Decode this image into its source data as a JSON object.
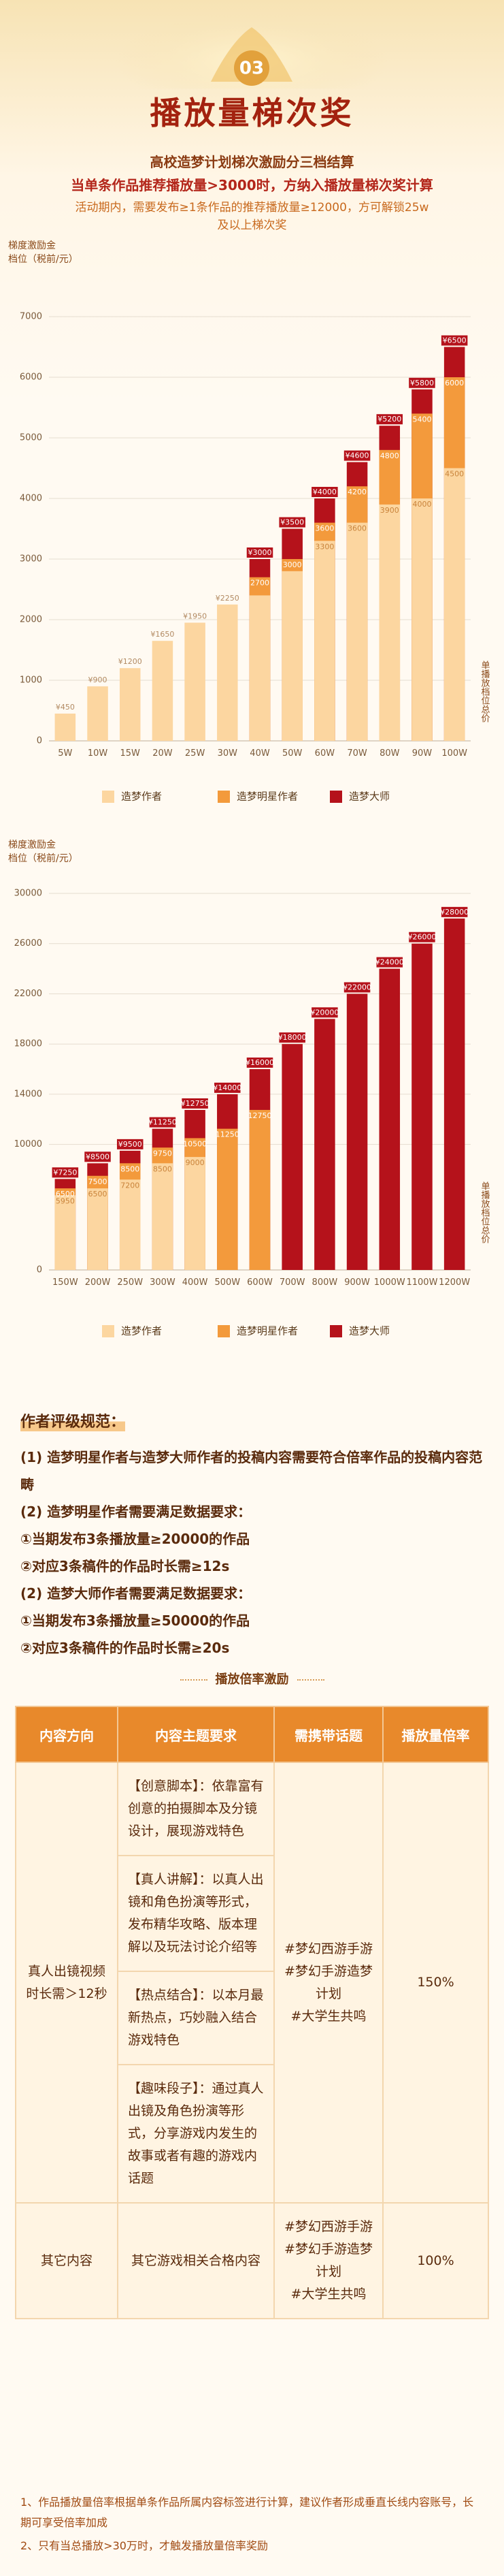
{
  "header": {
    "badge": "03",
    "title": "播放量梯次奖",
    "subtitle": "高校造梦计划梯次激励分三档结算",
    "rule": "当单条作品推荐播放量>3000时，方纳入播放量梯次奖计算",
    "note": "活动期内，需要发布≥1条作品的推荐播放量≥12000，方可解锁25w及以上梯次奖"
  },
  "chart_data": [
    {
      "type": "bar",
      "y_label": [
        "梯度激励金",
        "档位（税前/元）"
      ],
      "side_label": "单播放档位总价",
      "categories": [
        "5W",
        "10W",
        "15W",
        "20W",
        "25W",
        "30W",
        "40W",
        "50W",
        "60W",
        "70W",
        "80W",
        "90W",
        "100W"
      ],
      "series": [
        {
          "name": "造梦作者",
          "color": "#fcd6a0",
          "values": [
            450,
            900,
            1200,
            1650,
            1950,
            2250,
            2400,
            2800,
            3300,
            3600,
            3900,
            4000,
            4500
          ],
          "value_labels": [
            "¥450",
            "¥900",
            "¥1200",
            "¥1650",
            "¥1950",
            "¥2250",
            null,
            null,
            "3300",
            "3600",
            "3900",
            "4000",
            "4500"
          ]
        },
        {
          "name": "造梦明星作者",
          "color": "#f39a3c",
          "values": [
            null,
            null,
            null,
            null,
            null,
            null,
            2700,
            3000,
            3600,
            4200,
            4800,
            5400,
            6000
          ],
          "value_labels": [
            null,
            null,
            null,
            null,
            null,
            null,
            "2700",
            "3000",
            "3600",
            "4200",
            "4800",
            "5400",
            "6000"
          ]
        },
        {
          "name": "造梦大师",
          "color": "#b5121b",
          "values": [
            null,
            null,
            null,
            null,
            null,
            null,
            3000,
            3500,
            4000,
            4600,
            5200,
            5800,
            6500
          ],
          "value_labels": [
            null,
            null,
            null,
            null,
            null,
            null,
            "¥3000",
            "¥3500",
            "¥4000",
            "¥4600",
            "¥5200",
            "¥5800",
            "¥6500"
          ]
        }
      ],
      "ylim": [
        0,
        7000
      ],
      "yticks": [
        0,
        1000,
        2000,
        3000,
        4000,
        5000,
        6000,
        7000
      ],
      "grid": true
    },
    {
      "type": "bar",
      "y_label": [
        "梯度激励金",
        "档位（税前/元）"
      ],
      "side_label": "单播放档位总价",
      "categories": [
        "150W",
        "200W",
        "250W",
        "300W",
        "400W",
        "500W",
        "600W",
        "700W",
        "800W",
        "900W",
        "1000W",
        "1100W",
        "1200W"
      ],
      "series": [
        {
          "name": "造梦作者",
          "color": "#fcd6a0",
          "values": [
            5950,
            6500,
            7200,
            8500,
            9000,
            null,
            null,
            null,
            null,
            null,
            null,
            null,
            null
          ],
          "value_labels": [
            "5950",
            "6500",
            "7200",
            "8500",
            "9000",
            null,
            null,
            null,
            null,
            null,
            null,
            null,
            null
          ]
        },
        {
          "name": "造梦明星作者",
          "color": "#f39a3c",
          "values": [
            6500,
            7500,
            8500,
            9750,
            10500,
            11250,
            12750,
            null,
            null,
            null,
            null,
            null,
            null
          ],
          "value_labels": [
            "6500",
            "7500",
            "8500",
            "9750",
            "10500",
            "11250",
            "12750",
            null,
            null,
            null,
            null,
            null,
            null
          ]
        },
        {
          "name": "造梦大师",
          "color": "#b5121b",
          "values": [
            7250,
            8500,
            9500,
            11250,
            12750,
            14000,
            16000,
            18000,
            20000,
            22000,
            24000,
            26000,
            28000
          ],
          "value_labels": [
            "¥7250",
            "¥8500",
            "¥9500",
            "¥11250",
            "¥12750",
            "¥14000",
            "¥16000",
            "¥18000",
            "¥20000",
            "¥22000",
            "¥24000",
            "¥26000",
            "¥28000"
          ]
        }
      ],
      "ylim": [
        0,
        30000
      ],
      "yticks": [
        0,
        10000,
        14000,
        18000,
        22000,
        26000,
        30000
      ],
      "grid": true
    }
  ],
  "rating": {
    "title": "作者评级规范：",
    "items": [
      "(1) 造梦明星作者与造梦大师作者的投稿内容需要符合倍率作品的投稿内容范畴",
      "(2) 造梦明星作者需要满足数据要求：",
      "①当期发布3条播放量≥20000的作品",
      "②对应3条稿件的作品时长需≥12s",
      "(2) 造梦大师作者需要满足数据要求：",
      "①当期发布3条播放量≥50000的作品",
      "②对应3条稿件的作品时长需≥20s"
    ]
  },
  "multiplier": {
    "title": "播放倍率激励",
    "table": {
      "header": [
        "内容方向",
        "内容主题要求",
        "需携带话题",
        "播放量倍率"
      ],
      "rows": [
        {
          "direction": "真人出镜视频时长需＞12秒",
          "themes": [
            "【创意脚本】：依靠富有创意的拍摄脚本及分镜设计，展现游戏特色",
            "【真人讲解】：以真人出镜和角色扮演等形式，发布精华攻略、版本理解以及玩法讨论介绍等",
            "【热点结合】：以本月最新热点，巧妙融入结合游戏特色",
            "【趣味段子】：通过真人出镜及角色扮演等形式，分享游戏内发生的故事或者有趣的游戏内话题"
          ],
          "topics": [
            "#梦幻西游手游",
            "#梦幻手游造梦计划",
            "#大学生共鸣"
          ],
          "ratio": "150%"
        },
        {
          "direction": "其它内容",
          "themes": [
            "其它游戏相关合格内容"
          ],
          "topics": [
            "#梦幻西游手游",
            "#梦幻手游造梦计划",
            "#大学生共鸣"
          ],
          "ratio": "100%"
        }
      ]
    }
  },
  "footnotes": [
    "1、作品播放量倍率根据单条作品所属内容标签进行计算，建议作者形成垂直长线内容账号，长期可享受倍率加成",
    "2、只有当总播放>30万时，才触发播放量倍率奖励"
  ]
}
